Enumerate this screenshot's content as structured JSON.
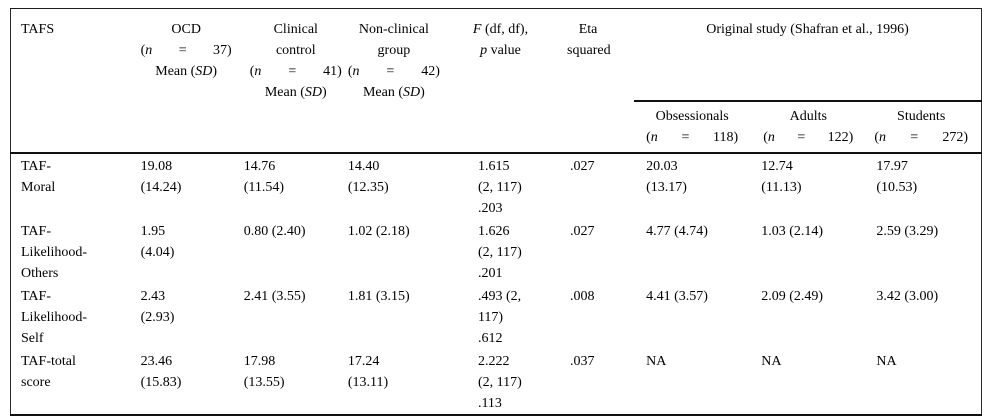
{
  "page": {
    "background": "#ffffff",
    "text_color": "#000000",
    "rule_color": "#111111"
  },
  "table": {
    "header": {
      "row_label": "TAFS",
      "groups": [
        {
          "name_lines": [
            "OCD"
          ],
          "n_line": [
            "(*n*",
            "=",
            "37)"
          ],
          "mean_line": "Mean (*SD*)"
        },
        {
          "name_lines": [
            "Clinical",
            "control"
          ],
          "n_line": [
            "(*n*",
            "=",
            "41)"
          ],
          "mean_line": "Mean (*SD*)"
        },
        {
          "name_lines": [
            "Non-clinical",
            "group"
          ],
          "n_line": [
            "(*n*",
            "=",
            "42)"
          ],
          "mean_line": "Mean (*SD*)"
        }
      ],
      "f_col_lines": [
        "*F* (df, df),",
        "*p* value"
      ],
      "eta_col_lines": [
        "Eta",
        "squared"
      ],
      "original_study": {
        "title": "Original study (Shafran et al., 1996)",
        "subcols": [
          {
            "name": "Obsessionals",
            "n_line": [
              "(*n*",
              "=",
              "118)"
            ]
          },
          {
            "name": "Adults",
            "n_line": [
              "(*n*",
              "=",
              "122)"
            ]
          },
          {
            "name": "Students",
            "n_line": [
              "(*n*",
              "=",
              "272)"
            ]
          }
        ]
      }
    },
    "rows": [
      {
        "label_lines": [
          "TAF-",
          "Moral"
        ],
        "cells": [
          [
            "19.08",
            "(14.24)"
          ],
          [
            "14.76",
            "(11.54)"
          ],
          [
            "14.40",
            "(12.35)"
          ],
          [
            "1.615",
            "(2, 117)",
            ".203"
          ],
          [
            ".027"
          ],
          [
            "20.03",
            "(13.17)"
          ],
          [
            "12.74",
            "(11.13)"
          ],
          [
            "17.97",
            "(10.53)"
          ]
        ]
      },
      {
        "label_lines": [
          "TAF-",
          "Likelihood-",
          "Others"
        ],
        "cells": [
          [
            "1.95",
            "(4.04)"
          ],
          [
            "0.80 (2.40)"
          ],
          [
            "1.02 (2.18)"
          ],
          [
            "1.626",
            "(2, 117)",
            ".201"
          ],
          [
            ".027"
          ],
          [
            "4.77 (4.74)"
          ],
          [
            "1.03 (2.14)"
          ],
          [
            "2.59 (3.29)"
          ]
        ]
      },
      {
        "label_lines": [
          "TAF-",
          "Likelihood-",
          "Self"
        ],
        "cells": [
          [
            "2.43",
            "(2.93)"
          ],
          [
            "2.41 (3.55)"
          ],
          [
            "1.81 (3.15)"
          ],
          [
            ".493 (2,",
            "117)",
            ".612"
          ],
          [
            ".008"
          ],
          [
            "4.41 (3.57)"
          ],
          [
            "2.09 (2.49)"
          ],
          [
            "3.42 (3.00)"
          ]
        ]
      },
      {
        "label_lines": [
          "TAF-total",
          "score"
        ],
        "cells": [
          [
            "23.46",
            "(15.83)"
          ],
          [
            "17.98",
            "(13.55)"
          ],
          [
            "17.24",
            "(13.11)"
          ],
          [
            "2.222",
            "(2, 117)",
            ".113"
          ],
          [
            ".037"
          ],
          [
            "NA"
          ],
          [
            "NA"
          ],
          [
            "NA"
          ]
        ]
      }
    ]
  }
}
